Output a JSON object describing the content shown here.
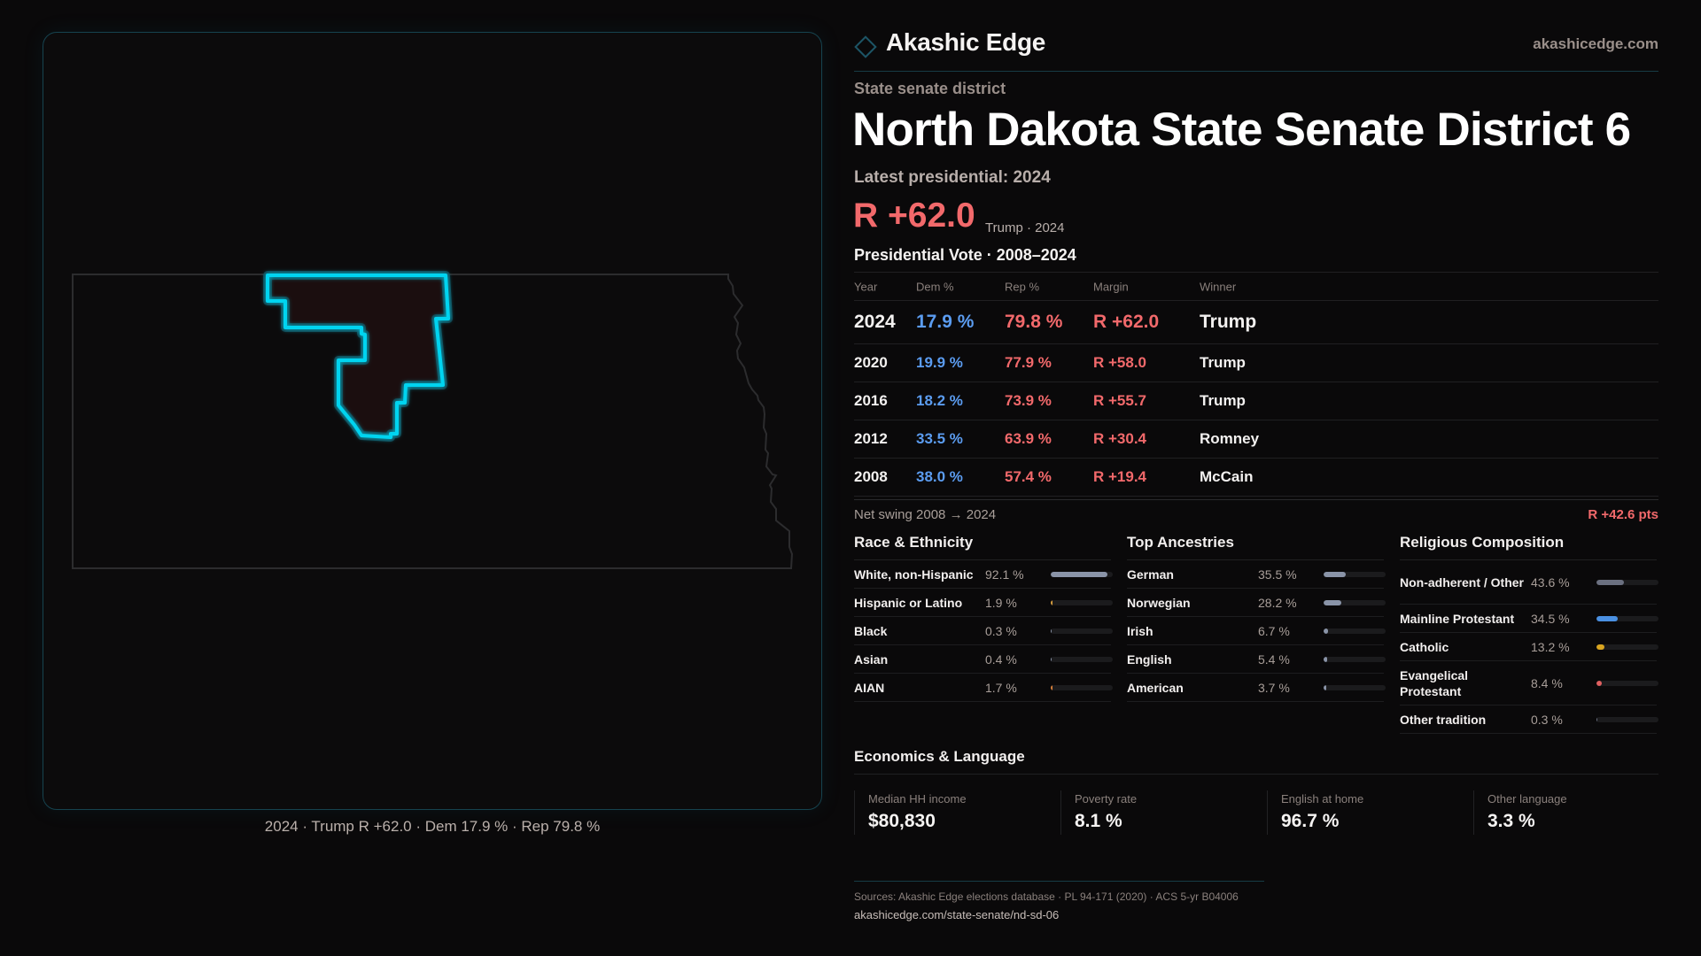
{
  "brand": {
    "name": "Akashic Edge",
    "site": "akashicedge.com",
    "logo_icon": "diamond-outline-icon",
    "accent": "#16434f"
  },
  "header": {
    "kicker": "State senate district",
    "title": "North Dakota State Senate District 6",
    "latest": "Latest presidential: 2024",
    "margin": "R +62.0",
    "margin_sub": "Trump · 2024"
  },
  "map": {
    "caption": "2024 · Trump R +62.0 · Dem 17.9 % · Rep 79.8 %",
    "district_stroke": "#00d4f0",
    "district_fill": "#1f0f10"
  },
  "presidential": {
    "title": "Presidential Vote · 2008–2024",
    "columns": [
      "Year",
      "Dem %",
      "Rep %",
      "Margin",
      "Winner"
    ],
    "rows": [
      {
        "year": "2024",
        "dem": "17.9 %",
        "rep": "79.8 %",
        "margin": "R +62.0",
        "winner": "Trump"
      },
      {
        "year": "2020",
        "dem": "19.9 %",
        "rep": "77.9 %",
        "margin": "R +58.0",
        "winner": "Trump"
      },
      {
        "year": "2016",
        "dem": "18.2 %",
        "rep": "73.9 %",
        "margin": "R +55.7",
        "winner": "Trump"
      },
      {
        "year": "2012",
        "dem": "33.5 %",
        "rep": "63.9 %",
        "margin": "R +30.4",
        "winner": "Romney"
      },
      {
        "year": "2008",
        "dem": "38.0 %",
        "rep": "57.4 %",
        "margin": "R +19.4",
        "winner": "McCain"
      }
    ],
    "swing_label": "Net swing 2008 → 2024",
    "swing_value": "R +42.6 pts"
  },
  "race": {
    "title": "Race & Ethnicity",
    "rows": [
      {
        "label": "White, non-Hispanic",
        "value": "92.1 %",
        "pct": 92.1,
        "color": "#8a94a8"
      },
      {
        "label": "Hispanic or Latino",
        "value": "1.9 %",
        "pct": 1.9,
        "color": "#d9a040"
      },
      {
        "label": "Black",
        "value": "0.3 %",
        "pct": 0.3,
        "color": "#8a94a8"
      },
      {
        "label": "Asian",
        "value": "0.4 %",
        "pct": 0.4,
        "color": "#8a94a8"
      },
      {
        "label": "AIAN",
        "value": "1.7 %",
        "pct": 1.7,
        "color": "#d9803a"
      }
    ]
  },
  "ancestry": {
    "title": "Top Ancestries",
    "rows": [
      {
        "label": "German",
        "value": "35.5 %",
        "pct": 35.5,
        "color": "#8a94a8"
      },
      {
        "label": "Norwegian",
        "value": "28.2 %",
        "pct": 28.2,
        "color": "#8a94a8"
      },
      {
        "label": "Irish",
        "value": "6.7 %",
        "pct": 6.7,
        "color": "#8a94a8"
      },
      {
        "label": "English",
        "value": "5.4 %",
        "pct": 5.4,
        "color": "#8a94a8"
      },
      {
        "label": "American",
        "value": "3.7 %",
        "pct": 3.7,
        "color": "#8a94a8"
      }
    ]
  },
  "religion": {
    "title": "Religious Composition",
    "rows": [
      {
        "label": "Non-adherent / Other",
        "value": "43.6 %",
        "pct": 43.6,
        "color": "#6b7080"
      },
      {
        "label": "Mainline Protestant",
        "value": "34.5 %",
        "pct": 34.5,
        "color": "#4a90e2"
      },
      {
        "label": "Catholic",
        "value": "13.2 %",
        "pct": 13.2,
        "color": "#d9a520"
      },
      {
        "label": "Evangelical Protestant",
        "value": "8.4 %",
        "pct": 8.4,
        "color": "#e06060"
      },
      {
        "label": "Other tradition",
        "value": "0.3 %",
        "pct": 0.3,
        "color": "#6b7080"
      }
    ]
  },
  "economics": {
    "title": "Economics & Language",
    "cards": [
      {
        "label": "Median HH income",
        "value": "$80,830"
      },
      {
        "label": "Poverty rate",
        "value": "8.1 %"
      },
      {
        "label": "English at home",
        "value": "96.7 %"
      },
      {
        "label": "Other language",
        "value": "3.3 %"
      }
    ]
  },
  "footer": {
    "sources": "Sources: Akashic Edge elections database · PL 94-171 (2020) · ACS 5-yr B04006",
    "url": "akashicedge.com/state-senate/nd-sd-06"
  }
}
